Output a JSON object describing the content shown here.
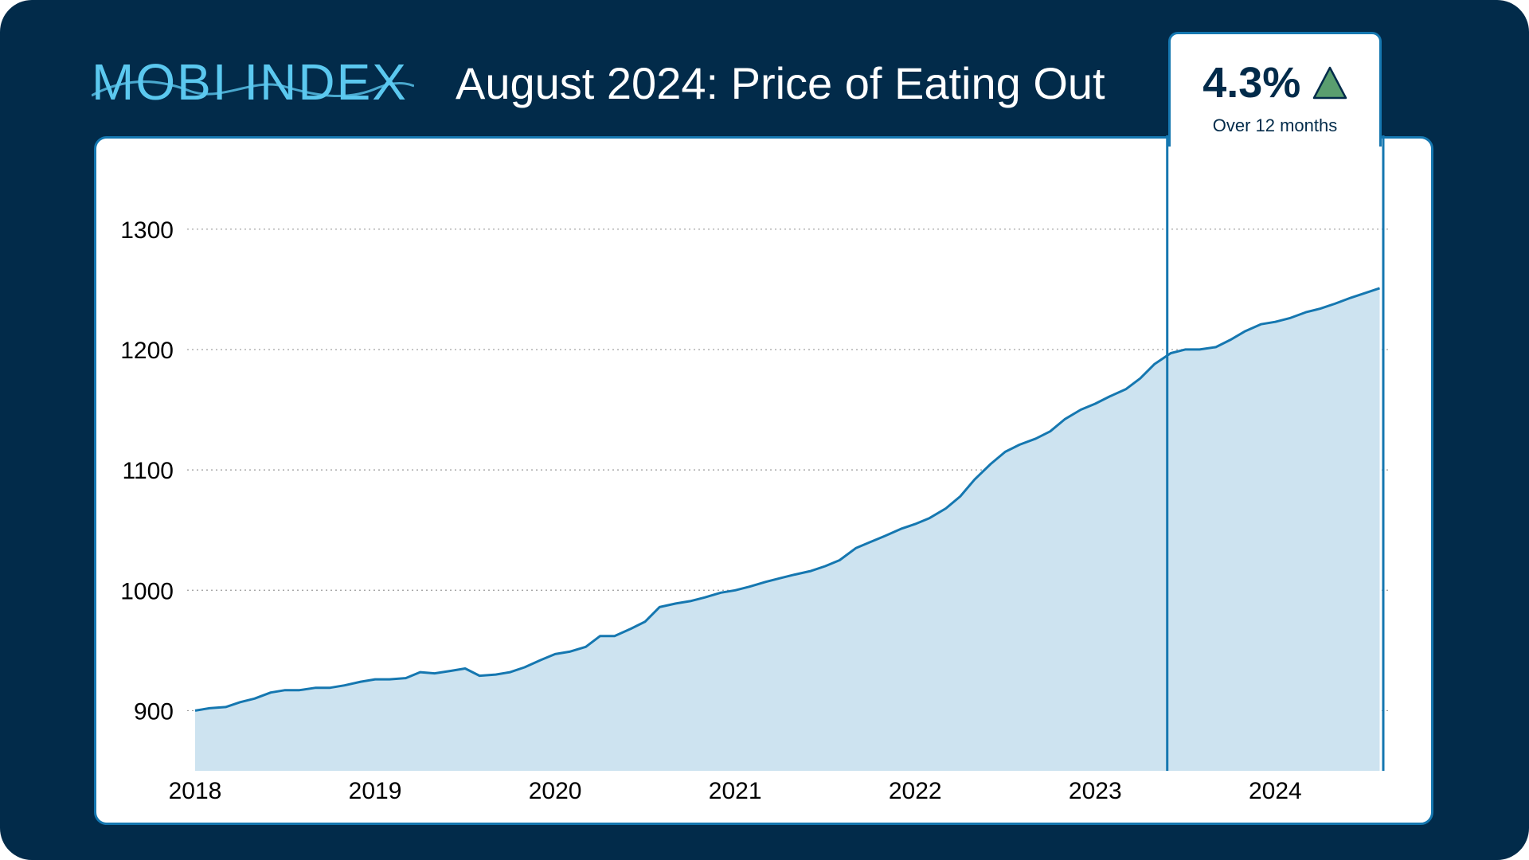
{
  "header": {
    "logo_text": "MOBI INDEX",
    "title": "August 2024: Price of Eating Out"
  },
  "badge": {
    "value": "4.3%",
    "direction": "up",
    "subtitle": "Over 12 months",
    "arrow_color": "#5a9e6f"
  },
  "colors": {
    "background": "#022b4a",
    "accent": "#1577b0",
    "fill": "#cde3f0",
    "logo": "#5bc8ef"
  },
  "chart_data": {
    "type": "area",
    "title": "",
    "xlabel": "",
    "ylabel": "",
    "ylim": [
      850,
      1325
    ],
    "xlim": [
      2018.0,
      2024.6
    ],
    "yticks": [
      900,
      1000,
      1100,
      1200,
      1300
    ],
    "xticks": [
      2018,
      2019,
      2020,
      2021,
      2022,
      2023,
      2024
    ],
    "grid": "horizontal-dotted",
    "highlight_range": [
      2023.4,
      2024.6
    ],
    "series": [
      {
        "points": [
          [
            2018.0,
            900
          ],
          [
            2018.08,
            902
          ],
          [
            2018.17,
            903
          ],
          [
            2018.25,
            907
          ],
          [
            2018.33,
            910
          ],
          [
            2018.42,
            915
          ],
          [
            2018.5,
            917
          ],
          [
            2018.58,
            917
          ],
          [
            2018.67,
            919
          ],
          [
            2018.75,
            919
          ],
          [
            2018.83,
            921
          ],
          [
            2018.92,
            924
          ],
          [
            2019.0,
            926
          ],
          [
            2019.08,
            926
          ],
          [
            2019.17,
            927
          ],
          [
            2019.25,
            932
          ],
          [
            2019.33,
            931
          ],
          [
            2019.42,
            933
          ],
          [
            2019.5,
            935
          ],
          [
            2019.58,
            929
          ],
          [
            2019.67,
            930
          ],
          [
            2019.75,
            932
          ],
          [
            2019.83,
            936
          ],
          [
            2019.92,
            942
          ],
          [
            2020.0,
            947
          ],
          [
            2020.08,
            949
          ],
          [
            2020.17,
            953
          ],
          [
            2020.25,
            962
          ],
          [
            2020.33,
            962
          ],
          [
            2020.42,
            968
          ],
          [
            2020.5,
            974
          ],
          [
            2020.58,
            986
          ],
          [
            2020.67,
            989
          ],
          [
            2020.75,
            991
          ],
          [
            2020.83,
            994
          ],
          [
            2020.92,
            998
          ],
          [
            2021.0,
            1000
          ],
          [
            2021.08,
            1003
          ],
          [
            2021.17,
            1007
          ],
          [
            2021.25,
            1010
          ],
          [
            2021.33,
            1013
          ],
          [
            2021.42,
            1016
          ],
          [
            2021.5,
            1020
          ],
          [
            2021.58,
            1025
          ],
          [
            2021.67,
            1035
          ],
          [
            2021.75,
            1040
          ],
          [
            2021.83,
            1045
          ],
          [
            2021.92,
            1051
          ],
          [
            2022.0,
            1055
          ],
          [
            2022.08,
            1060
          ],
          [
            2022.17,
            1068
          ],
          [
            2022.25,
            1078
          ],
          [
            2022.33,
            1092
          ],
          [
            2022.42,
            1105
          ],
          [
            2022.5,
            1115
          ],
          [
            2022.58,
            1121
          ],
          [
            2022.67,
            1126
          ],
          [
            2022.75,
            1132
          ],
          [
            2022.83,
            1142
          ],
          [
            2022.92,
            1150
          ],
          [
            2023.0,
            1155
          ],
          [
            2023.08,
            1161
          ],
          [
            2023.17,
            1167
          ],
          [
            2023.25,
            1176
          ],
          [
            2023.33,
            1188
          ],
          [
            2023.42,
            1197
          ],
          [
            2023.5,
            1200
          ],
          [
            2023.58,
            1200
          ],
          [
            2023.67,
            1202
          ],
          [
            2023.75,
            1208
          ],
          [
            2023.83,
            1215
          ],
          [
            2023.92,
            1221
          ],
          [
            2024.0,
            1223
          ],
          [
            2024.08,
            1226
          ],
          [
            2024.17,
            1231
          ],
          [
            2024.25,
            1234
          ],
          [
            2024.33,
            1238
          ],
          [
            2024.42,
            1243
          ],
          [
            2024.5,
            1247
          ],
          [
            2024.58,
            1251
          ]
        ]
      }
    ]
  }
}
